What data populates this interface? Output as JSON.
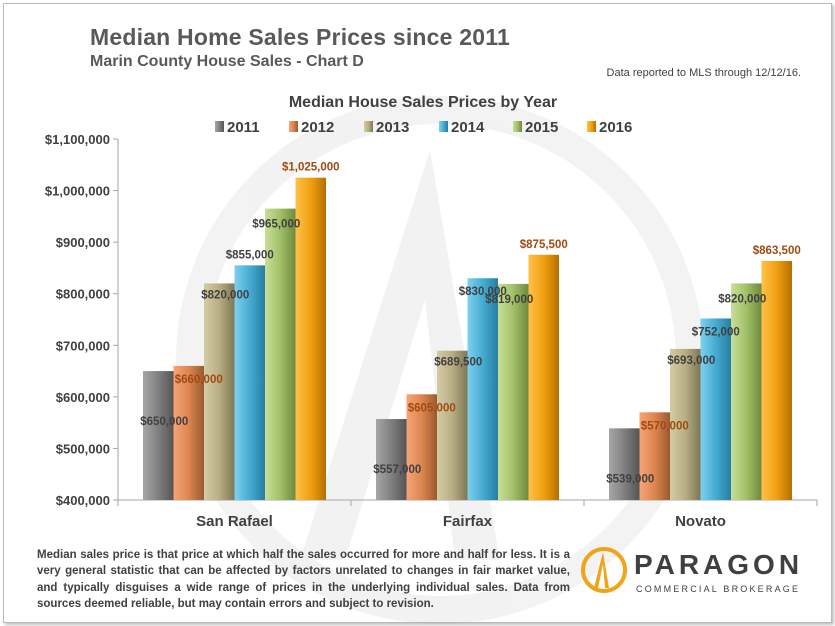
{
  "header": {
    "title": "Median Home Sales Prices since 2011",
    "subtitle": "Marin County House Sales - Chart D",
    "note": "Data reported to MLS through  12/12/16."
  },
  "footnote": "Median sales price is that price at which half the sales occurred for more and half for less. It is a very general statistic that can be affected by factors unrelated to changes in fair market value, and typically disguises a wide range of prices in the underlying individual sales. Data from sources deemed reliable, but may contain errors  and subject to revision.",
  "logo": {
    "name": "PARAGON",
    "tagline": "COMMERCIAL BROKERAGE"
  },
  "colors": {
    "2011": "#7f7f7f",
    "2012": "#e08a56",
    "2013": "#bdb48a",
    "2014": "#4fb3d6",
    "2015": "#a6c46e",
    "2016": "#f0a419"
  },
  "chart_data": {
    "type": "bar",
    "title": "Median House Sales Prices by Year",
    "categories": [
      "San Rafael",
      "Fairfax",
      "Novato"
    ],
    "series": [
      {
        "name": "2011",
        "values": [
          650000,
          557000,
          539000
        ],
        "labels": [
          "$650,000",
          "$557,000",
          "$539,000"
        ]
      },
      {
        "name": "2012",
        "values": [
          660000,
          605000,
          570000
        ],
        "labels": [
          "$660,000",
          "$605,000",
          "$570,000"
        ]
      },
      {
        "name": "2013",
        "values": [
          820000,
          689500,
          693000
        ],
        "labels": [
          "$820,000",
          "$689,500",
          "$693,000"
        ]
      },
      {
        "name": "2014",
        "values": [
          855000,
          830000,
          752000
        ],
        "labels": [
          "$855,000",
          "$830,000",
          "$752,000"
        ]
      },
      {
        "name": "2015",
        "values": [
          965000,
          819000,
          820000
        ],
        "labels": [
          "$965,000",
          "$819,000",
          "$820,000"
        ]
      },
      {
        "name": "2016",
        "values": [
          1025000,
          875500,
          863500
        ],
        "labels": [
          "$1,025,000",
          "$875,500",
          "$863,500"
        ]
      }
    ],
    "ylim": [
      400000,
      1100000
    ],
    "yticks": [
      400000,
      500000,
      600000,
      700000,
      800000,
      900000,
      1000000,
      1100000
    ],
    "ytick_labels": [
      "$400,000",
      "$500,000",
      "$600,000",
      "$700,000",
      "$800,000",
      "$900,000",
      "$1,000,000",
      "$1,100,000"
    ],
    "legend": "top",
    "grid": false
  }
}
